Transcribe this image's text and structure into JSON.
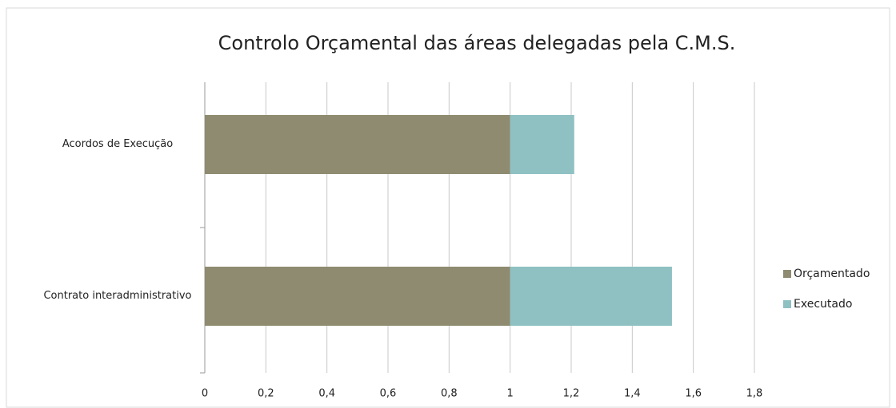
{
  "chart_data": {
    "type": "stacked_barh",
    "title": "Controlo Orçamental  das áreas delegadas pela C.M.S.",
    "categories": [
      "Acordos de Execução",
      "Contrato interadministrativo"
    ],
    "series": [
      {
        "name": "Orçamentado",
        "color": "#8f8b70",
        "values": [
          1,
          1
        ]
      },
      {
        "name": "Executado",
        "color": "#8fc1c3",
        "values": [
          0.21,
          0.53
        ]
      }
    ],
    "xlim": [
      0,
      1.8
    ],
    "xticks": [
      0,
      {
        "value": 0.2,
        "label": "0,2"
      },
      {
        "value": 0.4,
        "label": "0,4"
      },
      {
        "value": 0.6,
        "label": "0,6"
      },
      {
        "value": 0.8,
        "label": "0,8"
      },
      1,
      {
        "value": 1.2,
        "label": "1,2"
      },
      {
        "value": 1.4,
        "label": "1,4"
      },
      {
        "value": 1.6,
        "label": "1,6"
      },
      {
        "value": 1.8,
        "label": "1,8"
      }
    ],
    "grid": true,
    "legend": "right"
  }
}
